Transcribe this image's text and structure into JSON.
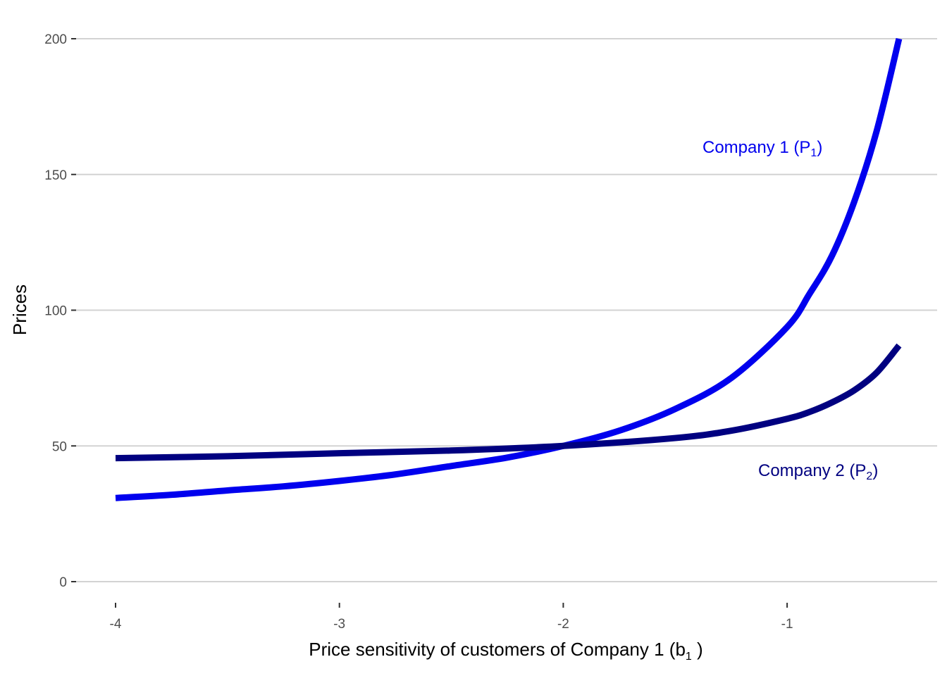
{
  "chart_data": {
    "type": "line",
    "title": "",
    "xlabel": {
      "text": "Price sensitivity of customers of Company 1  (b",
      "sub": "1",
      "suffix": " )"
    },
    "ylabel": "Prices",
    "xlim": [
      -4.0,
      -0.5
    ],
    "ylim": [
      0,
      200
    ],
    "x_ticks": [
      -4,
      -3,
      -2,
      -1
    ],
    "x_tick_labels": [
      "-4",
      "-3",
      "-2",
      "-1"
    ],
    "y_ticks": [
      0,
      50,
      100,
      150,
      200
    ],
    "y_tick_labels": [
      "0",
      "50",
      "100",
      "150",
      "200"
    ],
    "grid": "horizontal",
    "series": [
      {
        "name": "Company 1",
        "color": "#0000EE",
        "x": [
          -4.0,
          -3.75,
          -3.5,
          -3.25,
          -3.0,
          -2.75,
          -2.5,
          -2.25,
          -2.0,
          -1.75,
          -1.5,
          -1.25,
          -1.0,
          -0.9,
          -0.8,
          -0.7,
          -0.6,
          -0.5
        ],
        "y": [
          30.8,
          32.0,
          33.6,
          35.1,
          37.1,
          39.5,
          42.6,
          45.7,
          50.0,
          55.6,
          63.6,
          75.0,
          93.8,
          106.0,
          120.0,
          140.0,
          166.0,
          200.0
        ]
      },
      {
        "name": "Company 2",
        "color": "#000080",
        "x": [
          -4.0,
          -3.5,
          -3.0,
          -2.5,
          -2.0,
          -1.5,
          -1.25,
          -1.0,
          -0.9,
          -0.8,
          -0.7,
          -0.6,
          -0.5
        ],
        "y": [
          45.5,
          46.2,
          47.3,
          48.3,
          50.0,
          52.9,
          55.6,
          60.0,
          62.5,
          66.0,
          70.5,
          77.0,
          87.0
        ]
      }
    ],
    "annotations": [
      {
        "text": "Company 1 (P",
        "sub": "1",
        "suffix": ")",
        "color": "#0000EE"
      },
      {
        "text": "Company 2 (P",
        "sub": "2",
        "suffix": ")",
        "color": "#000080"
      }
    ]
  }
}
